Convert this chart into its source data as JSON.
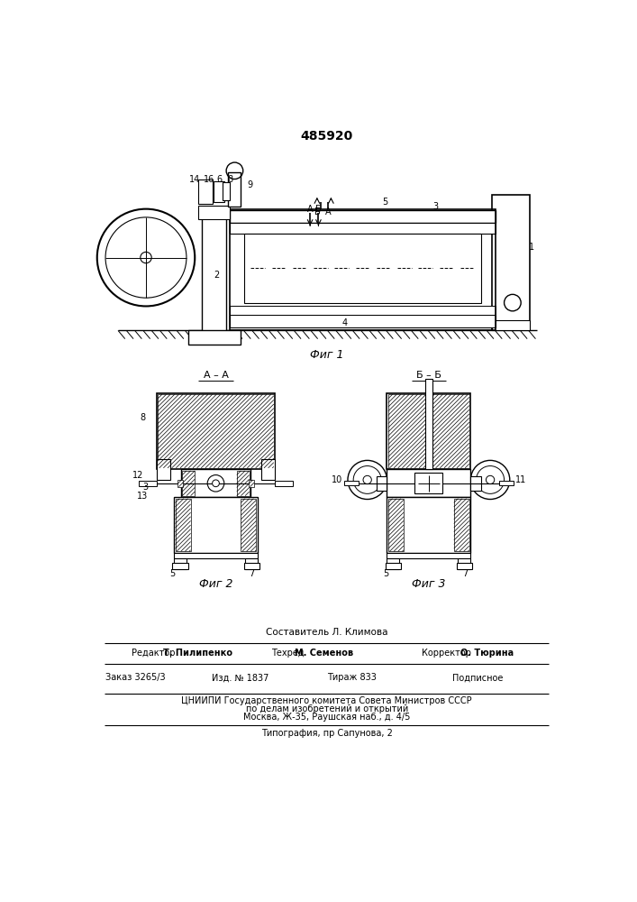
{
  "patent_number": "485920",
  "fig1_caption": "Фиг 1",
  "fig2_caption": "Фиг 2",
  "fig3_caption": "Фиг 3",
  "footer": {
    "composer_label": "Составитель Л. Климова",
    "editor_label": "Редактор Т. Пилипенко",
    "techred_label": "Техред М. Семенов",
    "corrector_label": "Корректор О. Тюрина",
    "order_label": "Заказ 3265/3",
    "izd_label": "Изд. № 1837",
    "tirazh_label": "Тираж 833",
    "podpisnoe_label": "Подписное",
    "cniiipi_line": "ЦНИИПИ Государственного комитета Совета Министров СССР",
    "po_delam_line": "по делам изобретений и открытий",
    "moskva_line": "Москва, Ж-35, Раушская наб., д. 4/5",
    "tipografia_line": "Типография, пр Сапунова, 2"
  },
  "bg_color": "#ffffff",
  "line_color": "#000000"
}
